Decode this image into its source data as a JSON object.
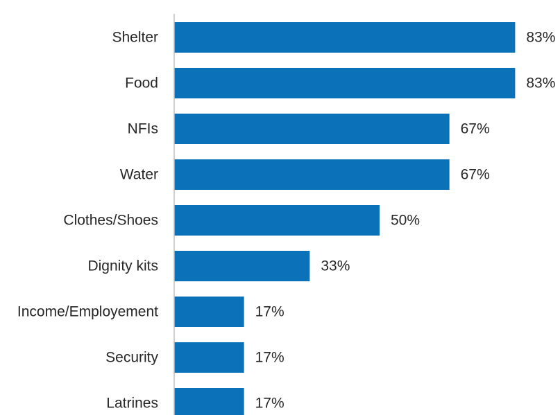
{
  "chart_data": {
    "type": "bar",
    "orientation": "horizontal",
    "categories": [
      "Shelter",
      "Food",
      "NFIs",
      "Water",
      "Clothes/Shoes",
      "Dignity kits",
      "Income/Employement",
      "Security",
      "Latrines"
    ],
    "values": [
      83,
      83,
      67,
      67,
      50,
      33,
      17,
      17,
      17
    ],
    "value_labels": [
      "83%",
      "83%",
      "67%",
      "67%",
      "50%",
      "33%",
      "17%",
      "17%",
      "17%"
    ],
    "unit": "%",
    "xlim": [
      0,
      100
    ],
    "grid": false,
    "legend": "none",
    "colors": {
      "bar": "#0B72BA",
      "axis": "#BFBFBF",
      "text": "#262626"
    }
  }
}
